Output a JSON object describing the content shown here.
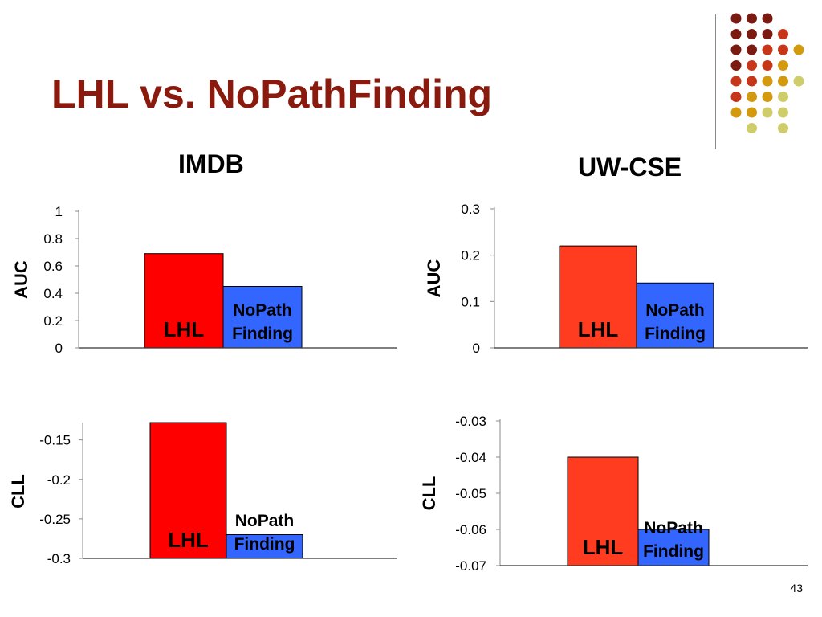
{
  "slide": {
    "title": "LHL vs. NoPathFinding",
    "page_number": "43",
    "dataset_titles": {
      "imdb": "IMDB",
      "uwcse": "UW-CSE"
    }
  },
  "colors": {
    "title": "#8b1a0e",
    "imdb_lhl": "#ff0000",
    "uwcse_lhl": "#ff3b20",
    "nopath": "#3366ff",
    "dots": [
      "#7b1a10",
      "#c8361a",
      "#d49a0e",
      "#cfcc6a"
    ]
  },
  "chart_data": [
    {
      "id": "imdb-auc",
      "type": "bar",
      "categories": [
        "LHL",
        "NoPath Finding"
      ],
      "bar_labels": [
        [
          "LHL"
        ],
        [
          "NoPath",
          "Finding"
        ]
      ],
      "values": [
        0.69,
        0.45
      ],
      "ylabel": "AUC",
      "ylim": [
        0,
        1
      ],
      "yticks": [
        "0",
        "0.2",
        "0.4",
        "0.6",
        "0.8",
        "1"
      ],
      "grid": false
    },
    {
      "id": "uwcse-auc",
      "type": "bar",
      "categories": [
        "LHL",
        "NoPath Finding"
      ],
      "bar_labels": [
        [
          "LHL"
        ],
        [
          "NoPath",
          "Finding"
        ]
      ],
      "values": [
        0.22,
        0.14
      ],
      "ylabel": "AUC",
      "ylim": [
        0,
        0.3
      ],
      "yticks": [
        "0",
        "0.1",
        "0.2",
        "0.3"
      ],
      "grid": false
    },
    {
      "id": "imdb-cll",
      "type": "bar",
      "categories": [
        "LHL",
        "NoPath Finding"
      ],
      "bar_labels": [
        [
          "LHL"
        ],
        [
          "NoPath",
          "Finding"
        ]
      ],
      "values": [
        -0.128,
        -0.27
      ],
      "ylabel": "CLL",
      "ylim": [
        -0.3,
        -0.13
      ],
      "yticks": [
        "-0.3",
        "-0.25",
        "-0.2",
        "-0.15"
      ],
      "grid": false
    },
    {
      "id": "uwcse-cll",
      "type": "bar",
      "categories": [
        "LHL",
        "NoPath Finding"
      ],
      "bar_labels": [
        [
          "LHL"
        ],
        [
          "NoPath",
          "Finding"
        ]
      ],
      "values": [
        -0.04,
        -0.06
      ],
      "ylabel": "CLL",
      "ylim": [
        -0.07,
        -0.03
      ],
      "yticks": [
        "-0.07",
        "-0.06",
        "-0.05",
        "-0.04",
        "-0.03"
      ],
      "grid": false
    }
  ]
}
